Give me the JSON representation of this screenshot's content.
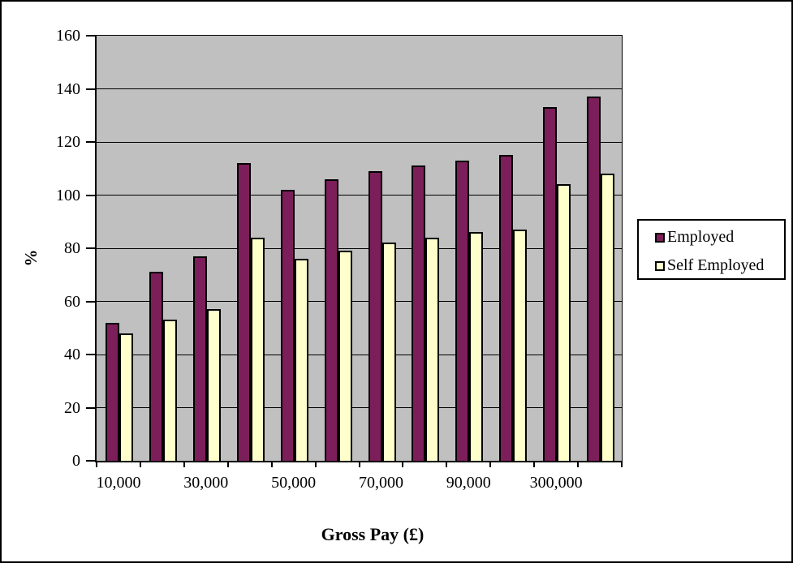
{
  "chart_data": {
    "type": "bar",
    "title": "",
    "xlabel": "Gross Pay (£)",
    "ylabel": "%",
    "x_tick_labels": [
      "10,000",
      "30,000",
      "50,000",
      "70,000",
      "90,000",
      "300,000"
    ],
    "labeled_group_start": 0,
    "labeled_group_step": 2,
    "series": [
      {
        "name": "Employed",
        "color": "#7C1E5A",
        "values": [
          52,
          71,
          77,
          112,
          102,
          106,
          109,
          111,
          113,
          115,
          133,
          137
        ]
      },
      {
        "name": "Self Employed",
        "color": "#FFFFCC",
        "values": [
          48,
          53,
          57,
          84,
          76,
          79,
          82,
          84,
          86,
          87,
          104,
          108
        ]
      }
    ],
    "y_axis": {
      "min": 0,
      "max": 160,
      "step": 20
    },
    "grid": true,
    "legend_position": "right",
    "plot_bg": "#C0C0C0",
    "axis_color": "#000000"
  }
}
